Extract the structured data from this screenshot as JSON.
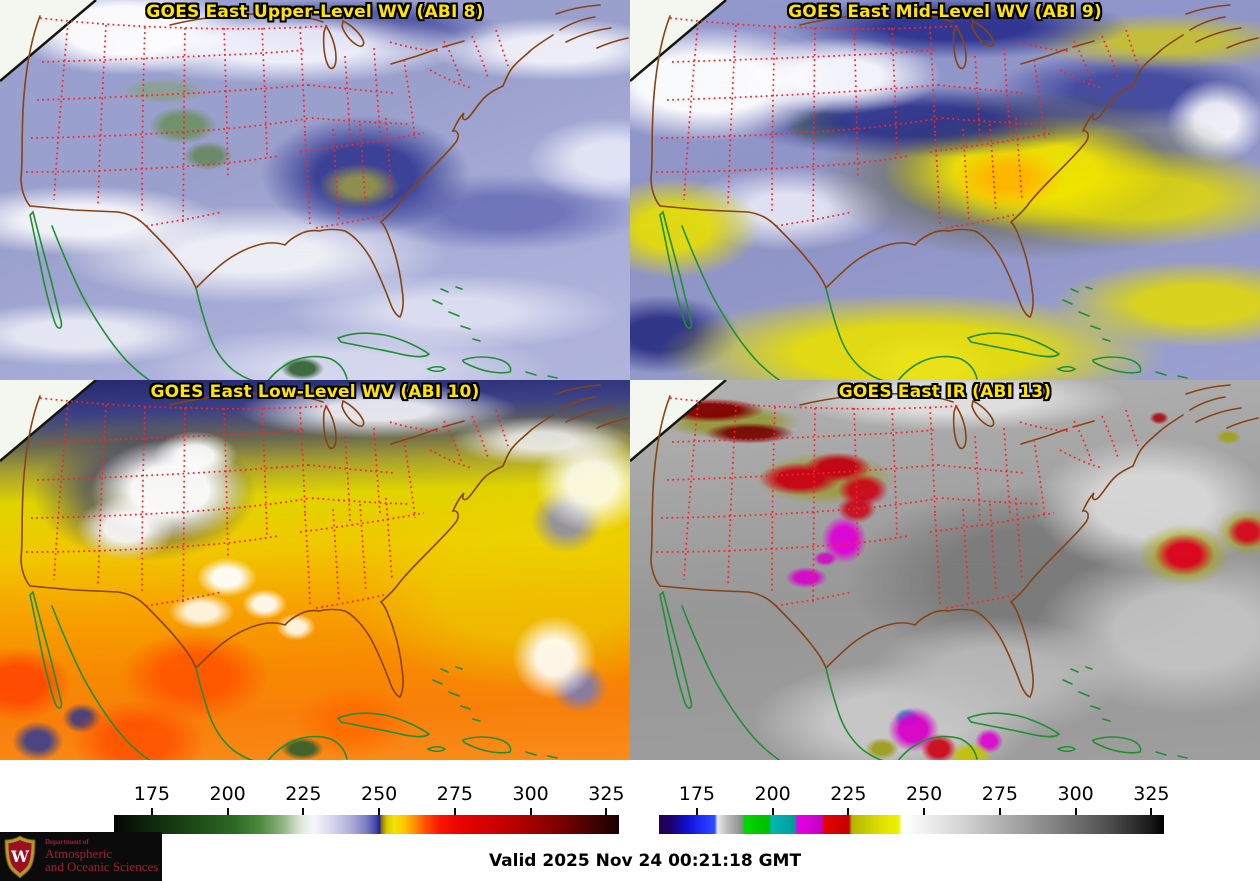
{
  "panels": [
    {
      "title": "GOES East Upper-Level WV (ABI 8)"
    },
    {
      "title": "GOES East Mid-Level WV (ABI 9)"
    },
    {
      "title": "GOES East Low-Level WV (ABI 10)"
    },
    {
      "title": "GOES East IR (ABI 13)"
    }
  ],
  "colorbars": {
    "wv": {
      "ticks": [
        "175",
        "200",
        "225",
        "250",
        "275",
        "300",
        "325"
      ]
    },
    "ir": {
      "ticks": [
        "175",
        "200",
        "225",
        "250",
        "275",
        "300",
        "325"
      ]
    }
  },
  "footer": {
    "valid_label": "Valid 2025 Nov 24 00:21:18 GMT"
  },
  "logo": {
    "monogram": "W",
    "dept_line": "Department of",
    "name_line1": "Atmospheric",
    "name_line2": "and Oceanic Sciences"
  },
  "colors": {
    "title_text": "#ffe400",
    "state_borders": "#ff2222",
    "us_coastline": "#874312",
    "intl_coastline": "#1e9032",
    "logo_text": "#a41e35"
  }
}
